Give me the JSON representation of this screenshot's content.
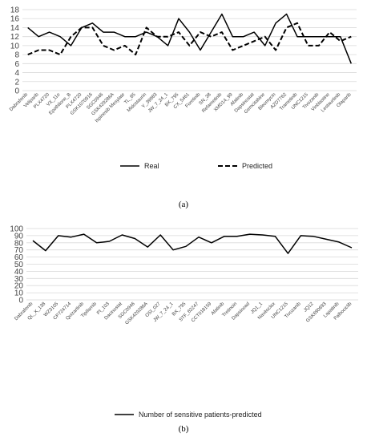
{
  "chart_data": [
    {
      "type": "line",
      "ylim": [
        0,
        18
      ],
      "yticks": [
        0,
        2,
        4,
        6,
        8,
        10,
        12,
        14,
        16,
        18
      ],
      "grid": true,
      "legend_placement": "bottom",
      "categories": [
        "Dabrafenib",
        "Veliparib",
        "PLX4720",
        "VX_11e",
        "Epothilone_B",
        "PLX4720",
        "GSK1070916",
        "SGC0946",
        "GSK429286A",
        "Ispinesib Mesylate",
        "TL_85",
        "Midostaurin",
        "Y_39983",
        "JW_7_24_1",
        "BX_795",
        "CX_5461",
        "Foretinib",
        "SN_38",
        "Refametinib",
        "XMD14_99",
        "Afatinib",
        "Dapsinostat",
        "Gemcitabine",
        "Bleomycin",
        "AZD7762",
        "Trametinib",
        "UNC1215",
        "Tivozanib",
        "Vinblastine",
        "Lestaurtinib",
        "Olaparib"
      ],
      "series": [
        {
          "name": "Real",
          "style": "solid",
          "color": "#000000",
          "values": [
            14,
            12,
            13,
            12,
            10,
            14,
            15,
            13,
            13,
            12,
            12,
            13,
            12,
            10,
            16,
            13,
            9,
            13,
            17,
            12,
            12,
            13,
            10,
            15,
            17,
            12,
            12,
            12,
            12,
            12,
            6
          ]
        },
        {
          "name": "Predicted",
          "style": "dashed",
          "color": "#000000",
          "values": [
            8,
            9,
            9,
            8,
            12,
            14,
            14,
            10,
            9,
            10,
            8,
            14,
            12,
            12,
            13,
            10,
            13,
            12,
            13,
            9,
            10,
            11,
            12,
            9,
            14,
            15,
            10,
            10,
            13,
            11,
            12
          ]
        }
      ],
      "caption": "(a)"
    },
    {
      "type": "line",
      "ylim": [
        0,
        100
      ],
      "yticks": [
        0,
        10,
        20,
        30,
        40,
        50,
        60,
        70,
        80,
        90,
        100
      ],
      "grid": true,
      "legend_placement": "bottom",
      "categories": [
        "Dabrafenib",
        "QL_X_138",
        "WZ3105",
        "CP724714",
        "Quizartinib",
        "Tipifarnib",
        "PI_103",
        "Dacinostat",
        "SGC0946",
        "GSK429286A",
        "OSI_027",
        "JW_7_24_1",
        "BX_795",
        "STF_62247",
        "CCT018159",
        "Afatinib",
        "Tretinoin",
        "Dapsinoad",
        "JQ1_1",
        "Navitoclax",
        "UNC1215",
        "Tivozanib",
        "JQ12",
        "GSK690693",
        "Lapatinib",
        "Palbociclib"
      ],
      "series": [
        {
          "name": "Number of sensitive patients-predicted",
          "style": "solid",
          "color": "#000000",
          "values": [
            83,
            69,
            90,
            88,
            92,
            80,
            82,
            91,
            86,
            74,
            91,
            70,
            75,
            88,
            80,
            89,
            89,
            92,
            91,
            89,
            65,
            90,
            89,
            85,
            81,
            73
          ]
        }
      ],
      "caption": "(b)"
    }
  ]
}
